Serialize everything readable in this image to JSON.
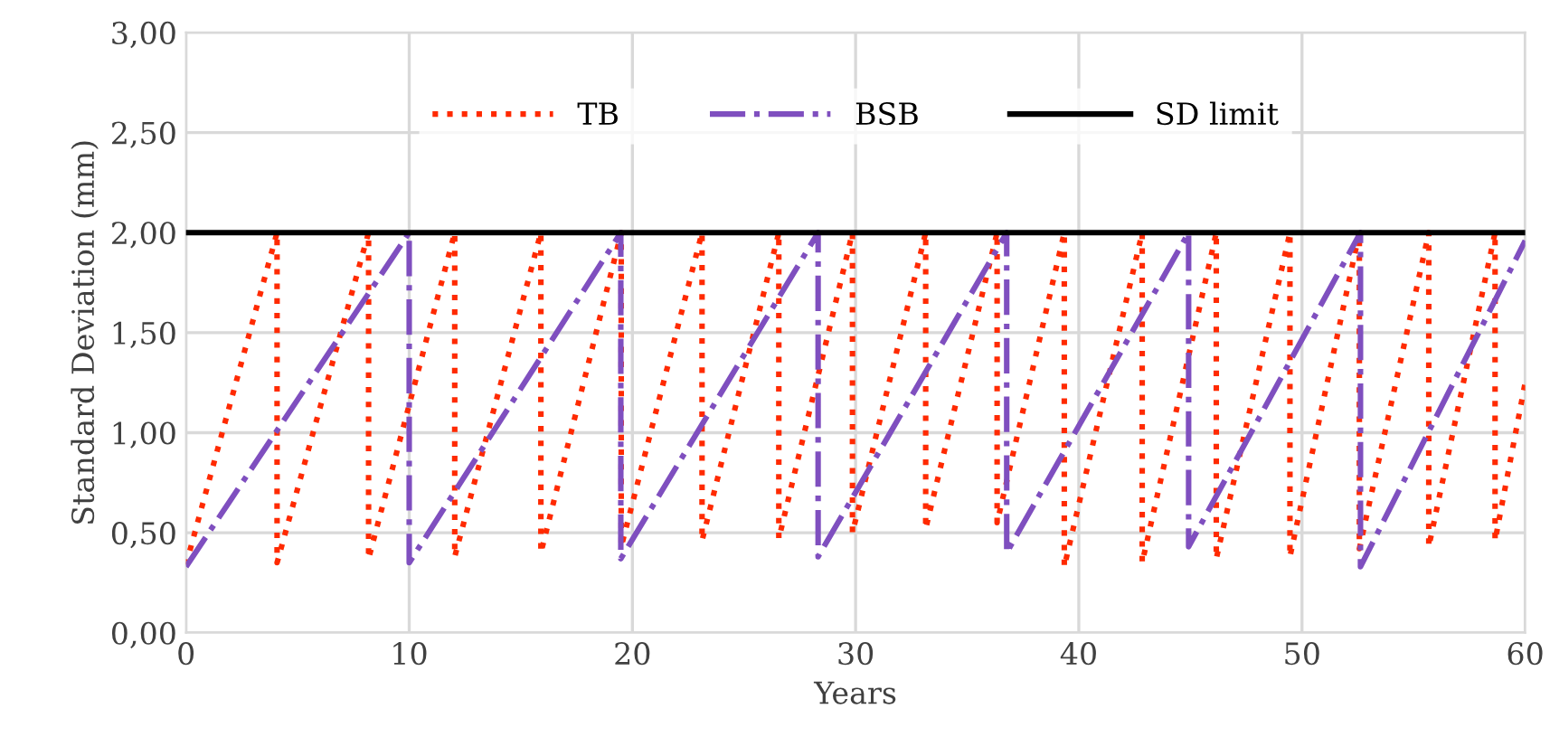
{
  "chart_data": {
    "type": "line",
    "xlabel": "Years",
    "ylabel": "Standard Deviation (mm)",
    "xlim": [
      0,
      60
    ],
    "xticks": [
      0,
      10,
      20,
      30,
      40,
      50,
      60
    ],
    "ylim": [
      0,
      3
    ],
    "yticks": [
      {
        "value": 0,
        "label": "0,00"
      },
      {
        "value": 0.5,
        "label": "0,50"
      },
      {
        "value": 1,
        "label": "1,00"
      },
      {
        "value": 1.5,
        "label": "1,50"
      },
      {
        "value": 2,
        "label": "2,00"
      },
      {
        "value": 2.5,
        "label": "2,50"
      },
      {
        "value": 3,
        "label": "3,00"
      }
    ],
    "grid": true,
    "legend": "top",
    "marker": "none",
    "series": [
      {
        "name": "TB",
        "color": "#ff2a00",
        "line_style": "dotted",
        "x": [
          0,
          4.08,
          4.08,
          8.18,
          8.18,
          12.04,
          12.04,
          15.9,
          15.9,
          19.5,
          19.5,
          23.12,
          23.12,
          26.56,
          26.56,
          29.86,
          29.86,
          33.14,
          33.14,
          36.34,
          36.34,
          39.35,
          39.35,
          42.84,
          42.84,
          46.16,
          46.16,
          49.46,
          49.46,
          52.57,
          52.57,
          55.68,
          55.68,
          58.65,
          58.65,
          60
        ],
        "values": [
          0.34,
          2,
          0.35,
          2,
          0.37,
          2,
          0.38,
          2,
          0.4,
          2,
          0.43,
          2,
          0.46,
          2,
          0.47,
          2,
          0.5,
          2,
          0.52,
          2,
          0.55,
          2,
          0.33,
          2,
          0.35,
          2,
          0.37,
          2,
          0.38,
          2,
          0.42,
          2,
          0.43,
          2,
          0.46,
          1.25
        ]
      },
      {
        "name": "BSB",
        "color": "#7f4fbf",
        "line_style": "dashdot",
        "x": [
          0,
          10,
          10,
          19.48,
          19.48,
          28.32,
          28.32,
          36.77,
          36.77,
          44.92,
          44.92,
          52.62,
          52.62,
          60
        ],
        "values": [
          0.33,
          2,
          0.35,
          2,
          0.37,
          2,
          0.38,
          2,
          0.4,
          2,
          0.43,
          2,
          0.33,
          1.96
        ]
      },
      {
        "name": "SD limit",
        "color": "#000000",
        "line_style": "solid",
        "x": [
          0,
          60
        ],
        "values": [
          2,
          2
        ]
      }
    ]
  }
}
